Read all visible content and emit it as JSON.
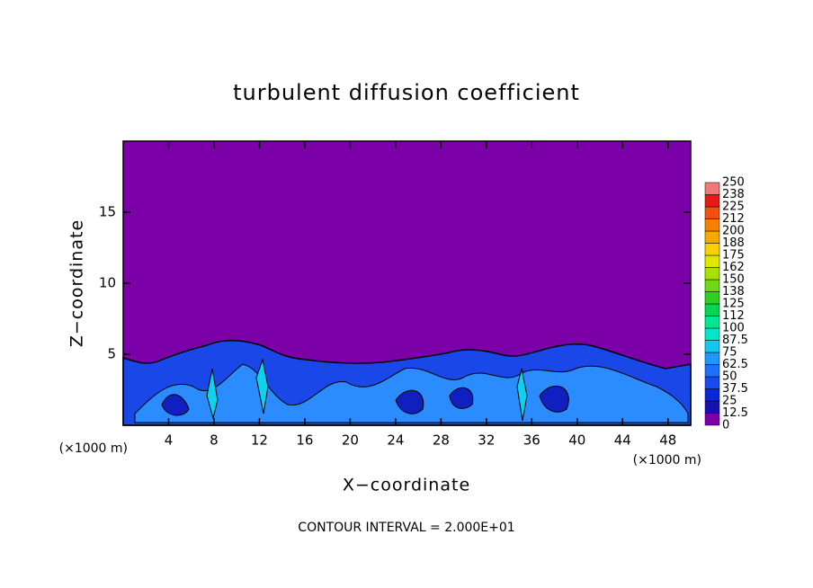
{
  "chart_data": {
    "type": "contour",
    "title": "turbulent diffusion coefficient",
    "x_label": "X−coordinate",
    "y_label": "Z−coordinate",
    "x_scale_label": "(×1000 m)",
    "note": "CONTOUR INTERVAL = 2.000E+01",
    "xlim": [
      0,
      50
    ],
    "xticks": [
      4,
      8,
      12,
      16,
      20,
      24,
      28,
      32,
      36,
      40,
      44,
      48
    ],
    "ylim": [
      0,
      20
    ],
    "yticks": [
      5,
      10,
      15
    ],
    "colorbar": {
      "levels": [
        0,
        12.5,
        25,
        37.5,
        50,
        62.5,
        75,
        87.5,
        100,
        112,
        125,
        138,
        150,
        162,
        175,
        188,
        200,
        212,
        225,
        238,
        250
      ],
      "colors": [
        "#7b00a8",
        "#1a10b0",
        "#0a28d8",
        "#1848f0",
        "#1c70ff",
        "#2098ff",
        "#10c8f0",
        "#00e8c8",
        "#00e890",
        "#00d850",
        "#30d020",
        "#70d810",
        "#a8e000",
        "#e0e800",
        "#f8d000",
        "#f8a800",
        "#f88000",
        "#f05010",
        "#e81818",
        "#f07878"
      ]
    }
  }
}
